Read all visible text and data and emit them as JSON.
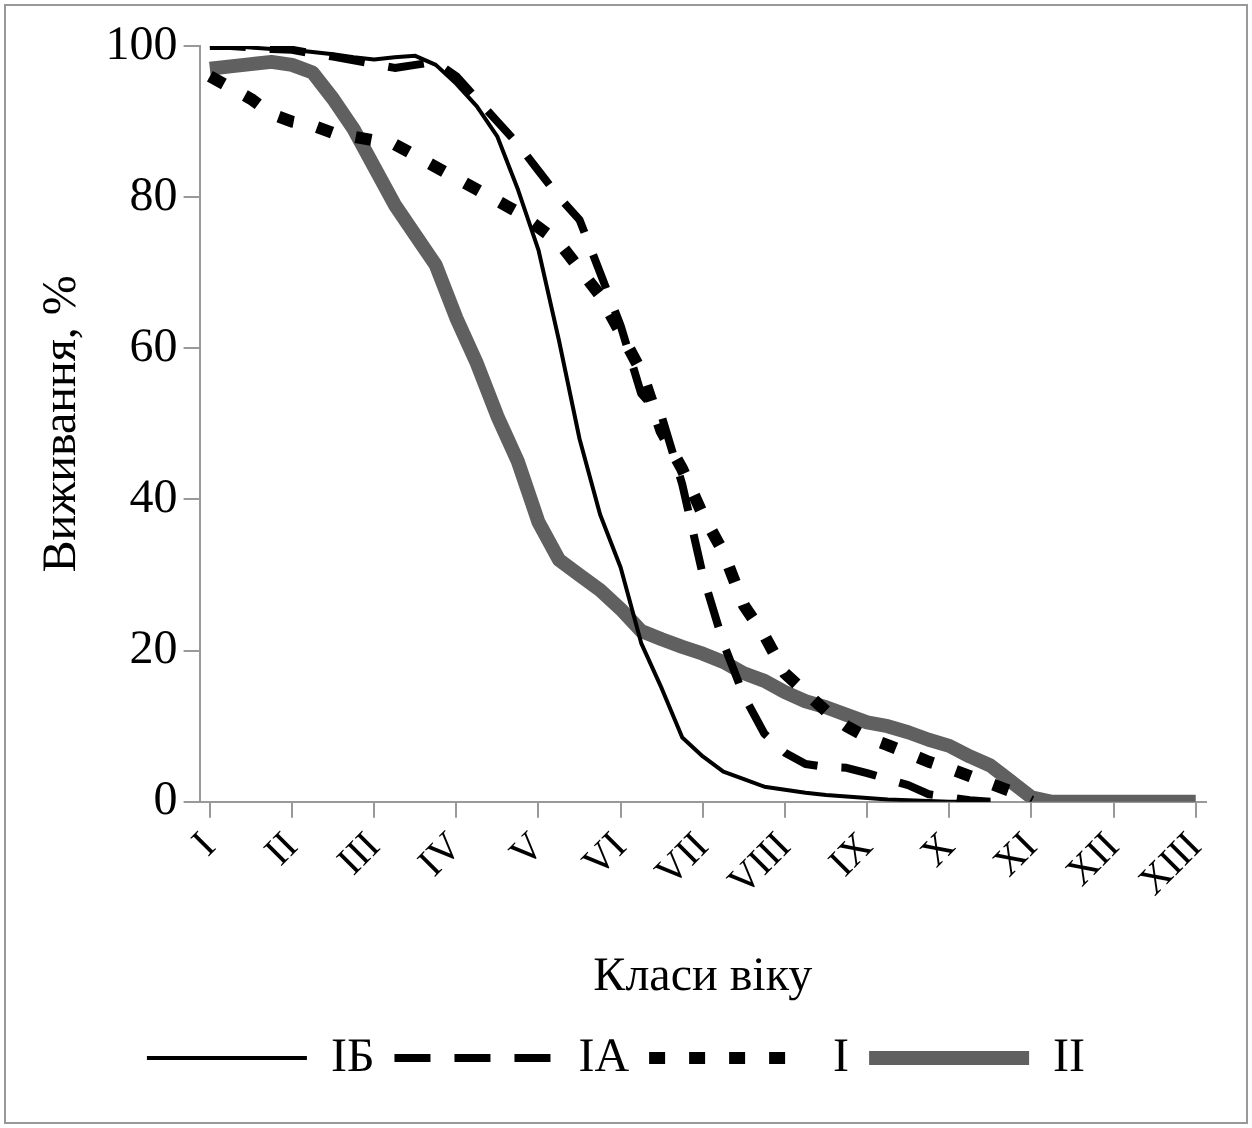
{
  "chart_data": {
    "type": "line",
    "xlabel": "Класи віку",
    "ylabel": "Виживання, %",
    "categories": [
      "I",
      null,
      null,
      null,
      "II",
      null,
      null,
      null,
      "III",
      null,
      null,
      null,
      "IV",
      null,
      null,
      null,
      "V",
      null,
      null,
      null,
      "VI",
      null,
      null,
      null,
      "VII",
      null,
      null,
      null,
      "VIII",
      null,
      null,
      null,
      "IX",
      null,
      null,
      null,
      "X",
      null,
      null,
      null,
      "XI",
      null,
      null,
      null,
      "XII",
      null,
      null,
      null,
      "XIII"
    ],
    "ylim": [
      0,
      100
    ],
    "yticks": [
      0,
      20,
      40,
      60,
      80,
      100
    ],
    "legend": "bottom",
    "marker": "none",
    "series": [
      {
        "name": "IБ",
        "color": "#000000",
        "line_style": "solid",
        "values": [
          100,
          100,
          99.8,
          99.6,
          99.5,
          99.2,
          98.9,
          98.5,
          98.2,
          98.5,
          98.7,
          97.5,
          95,
          92,
          88,
          81,
          73,
          61,
          48,
          38,
          31,
          21,
          15,
          8.5,
          6,
          4,
          3,
          2,
          1.6,
          1.2,
          0.9,
          0.7,
          0.5,
          0.3,
          0.2,
          0.1,
          0,
          0,
          0,
          null,
          null,
          null,
          null,
          null,
          null,
          null,
          null,
          null,
          null
        ]
      },
      {
        "name": "IA",
        "color": "#000000",
        "line_style": "dashed",
        "values": [
          100,
          100,
          99.8,
          99.6,
          99.5,
          99,
          98.6,
          98.1,
          97.6,
          97.1,
          97.5,
          97.9,
          96,
          93,
          90,
          87,
          83.5,
          80,
          77,
          70,
          63,
          54,
          51,
          42,
          30,
          21,
          14,
          9,
          6.5,
          5,
          4.6,
          4.5,
          3.8,
          3,
          2.2,
          1,
          0.6,
          0.2,
          0,
          null,
          null,
          null,
          null,
          null,
          null,
          null,
          null,
          null,
          null
        ]
      },
      {
        "name": "I",
        "color": "#000000",
        "line_style": "dotted",
        "values": [
          96,
          94.5,
          93,
          91,
          90,
          89.5,
          88.5,
          88,
          87.5,
          87,
          85.5,
          84,
          82.5,
          81,
          79.5,
          78,
          76,
          74,
          70.5,
          67,
          62,
          57,
          49,
          44,
          38,
          33,
          26,
          22,
          17,
          14.5,
          12,
          10,
          8.5,
          7.5,
          6.4,
          5.3,
          4.4,
          3.4,
          2.4,
          1.4,
          0,
          null,
          null,
          null,
          null,
          null,
          null,
          null,
          null
        ]
      },
      {
        "name": "II",
        "color": "#606060",
        "line_style": "solid",
        "values": [
          97,
          97.3,
          97.6,
          97.9,
          97.5,
          96.5,
          93,
          89,
          84,
          79,
          75,
          71,
          64,
          58,
          51,
          45,
          37,
          32,
          30,
          28,
          25.5,
          22.6,
          21.5,
          20.5,
          19.6,
          18.5,
          17,
          16,
          14.5,
          13.3,
          12.5,
          11.5,
          10.5,
          10,
          9.2,
          8.2,
          7.4,
          6,
          4.8,
          2.7,
          0.6,
          0,
          0,
          0,
          0,
          0,
          0,
          0,
          0
        ]
      }
    ]
  }
}
